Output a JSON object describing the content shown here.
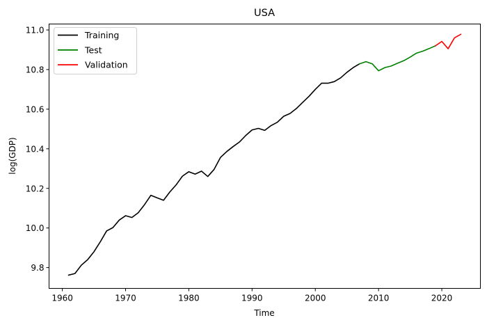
{
  "chart_data": {
    "type": "line",
    "title": "USA",
    "xlabel": "Time",
    "ylabel": "log(GDP)",
    "xlim": [
      1957.9,
      2026.1
    ],
    "ylim": [
      9.695,
      11.03
    ],
    "x_ticks": [
      "1960",
      "1970",
      "1980",
      "1990",
      "2000",
      "2010",
      "2020"
    ],
    "y_ticks": [
      "9.8",
      "10.0",
      "10.2",
      "10.4",
      "10.6",
      "10.8",
      "11.0"
    ],
    "grid": false,
    "legend": "top-left",
    "series": [
      {
        "name": "Training",
        "color": "#000000",
        "x": [
          1961,
          1962,
          1963,
          1964,
          1965,
          1966,
          1967,
          1968,
          1969,
          1970,
          1971,
          1972,
          1973,
          1974,
          1975,
          1976,
          1977,
          1978,
          1979,
          1980,
          1981,
          1982,
          1983,
          1984,
          1985,
          1986,
          1987,
          1988,
          1989,
          1990,
          1991,
          1992,
          1993,
          1994,
          1995,
          1996,
          1997,
          1998,
          1999,
          2000,
          2001,
          2002,
          2003,
          2004,
          2005,
          2006,
          2007
        ],
        "y": [
          9.762,
          9.77,
          9.812,
          9.84,
          9.88,
          9.93,
          9.985,
          10.002,
          10.04,
          10.062,
          10.053,
          10.077,
          10.118,
          10.165,
          10.152,
          10.14,
          10.182,
          10.218,
          10.262,
          10.284,
          10.272,
          10.287,
          10.26,
          10.296,
          10.356,
          10.386,
          10.411,
          10.434,
          10.467,
          10.495,
          10.503,
          10.493,
          10.517,
          10.534,
          10.564,
          10.578,
          10.603,
          10.634,
          10.665,
          10.7,
          10.731,
          10.731,
          10.739,
          10.758,
          10.786,
          10.81,
          10.829
        ]
      },
      {
        "name": "Test",
        "color": "#008000",
        "x": [
          2007,
          2008,
          2009,
          2010,
          2011,
          2012,
          2013,
          2014,
          2015,
          2016,
          2017,
          2018,
          2019
        ],
        "y": [
          10.829,
          10.84,
          10.829,
          10.794,
          10.81,
          10.818,
          10.832,
          10.845,
          10.863,
          10.883,
          10.893,
          10.906,
          10.92
        ]
      },
      {
        "name": "Validation",
        "color": "#ff0000",
        "x": [
          2019,
          2020,
          2021,
          2022,
          2023
        ],
        "y": [
          10.92,
          10.942,
          10.905,
          10.96,
          10.978
        ]
      }
    ]
  }
}
